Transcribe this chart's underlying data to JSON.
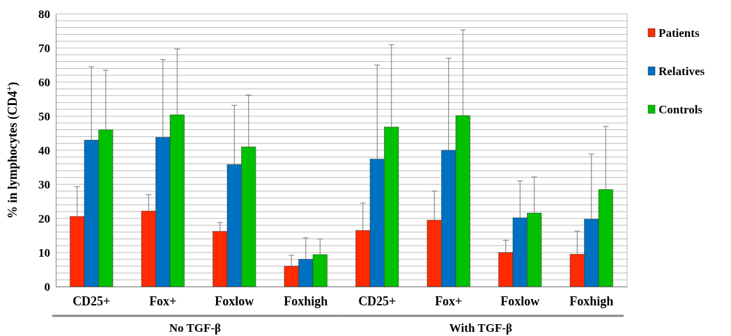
{
  "chart_data": {
    "type": "bar",
    "ylabel": "% in lymphocytes (CD4$^{+}$)",
    "categories": [
      "CD25+",
      "Fox+",
      "Foxlow",
      "Foxhigh",
      "CD25+",
      "Fox+",
      "Foxlow",
      "Foxhigh"
    ],
    "series": [
      {
        "name": "Patients",
        "color": "#ff2a00",
        "values": [
          20.6,
          22.2,
          16.2,
          6,
          16.5,
          19.5,
          10,
          9.5
        ],
        "errors": [
          [
            20.6,
            29.3
          ],
          [
            22.2,
            27
          ],
          [
            16.2,
            18.8
          ],
          [
            6,
            9.2
          ],
          [
            16.5,
            24.5
          ],
          [
            19.5,
            28
          ],
          [
            10,
            13.6
          ],
          [
            9.5,
            16.3
          ]
        ]
      },
      {
        "name": "Relatives",
        "color": "#0070c0",
        "values": [
          43,
          43.8,
          35.8,
          8,
          37.4,
          40,
          20.2,
          19.8
        ],
        "errors": [
          [
            43,
            64.5
          ],
          [
            43.8,
            66.6
          ],
          [
            35.8,
            53.2
          ],
          [
            8,
            14.3
          ],
          [
            37.4,
            65
          ],
          [
            40,
            67
          ],
          [
            20.2,
            31
          ],
          [
            19.8,
            38.9
          ]
        ]
      },
      {
        "name": "Controls",
        "color": "#00c000",
        "values": [
          46,
          50.4,
          41,
          9.4,
          46.8,
          50.2,
          21.6,
          28.5
        ],
        "errors": [
          [
            46,
            63.5
          ],
          [
            50.4,
            69.7
          ],
          [
            41,
            56.2
          ],
          [
            9.4,
            14
          ],
          [
            46.8,
            71
          ],
          [
            50.2,
            75.3
          ],
          [
            21.6,
            32.2
          ],
          [
            28.5,
            47
          ]
        ]
      }
    ],
    "annotations": [
      "No TGF-β",
      "With TGF-β"
    ],
    "ylim": [
      0,
      80
    ],
    "yticks": [
      0,
      {
        "value": 2,
        "label": null
      },
      {
        "value": 4,
        "label": null
      },
      {
        "value": 6,
        "label": null
      },
      {
        "value": 8,
        "label": null
      },
      10,
      {
        "value": 12,
        "label": null
      },
      {
        "value": 14,
        "label": null
      },
      {
        "value": 16,
        "label": null
      },
      {
        "value": 18,
        "label": null
      },
      20,
      {
        "value": 22,
        "label": null
      },
      {
        "value": 24,
        "label": null
      },
      {
        "value": 26,
        "label": null
      },
      {
        "value": 28,
        "label": null
      },
      30,
      {
        "value": 32,
        "label": null
      },
      {
        "value": 34,
        "label": null
      },
      {
        "value": 36,
        "label": null
      },
      {
        "value": 38,
        "label": null
      },
      40,
      {
        "value": 42,
        "label": null
      },
      {
        "value": 44,
        "label": null
      },
      {
        "value": 46,
        "label": null
      },
      {
        "value": 48,
        "label": null
      },
      50,
      {
        "value": 52,
        "label": null
      },
      {
        "value": 54,
        "label": null
      },
      {
        "value": 56,
        "label": null
      },
      {
        "value": 58,
        "label": null
      },
      60,
      {
        "value": 62,
        "label": null
      },
      {
        "value": 64,
        "label": null
      },
      {
        "value": 66,
        "label": null
      },
      {
        "value": 68,
        "label": null
      },
      70,
      {
        "value": 72,
        "label": null
      },
      {
        "value": 74,
        "label": null
      },
      {
        "value": 76,
        "label": null
      },
      {
        "value": 78,
        "label": null
      },
      80
    ],
    "grid": "y",
    "legend": "right"
  }
}
